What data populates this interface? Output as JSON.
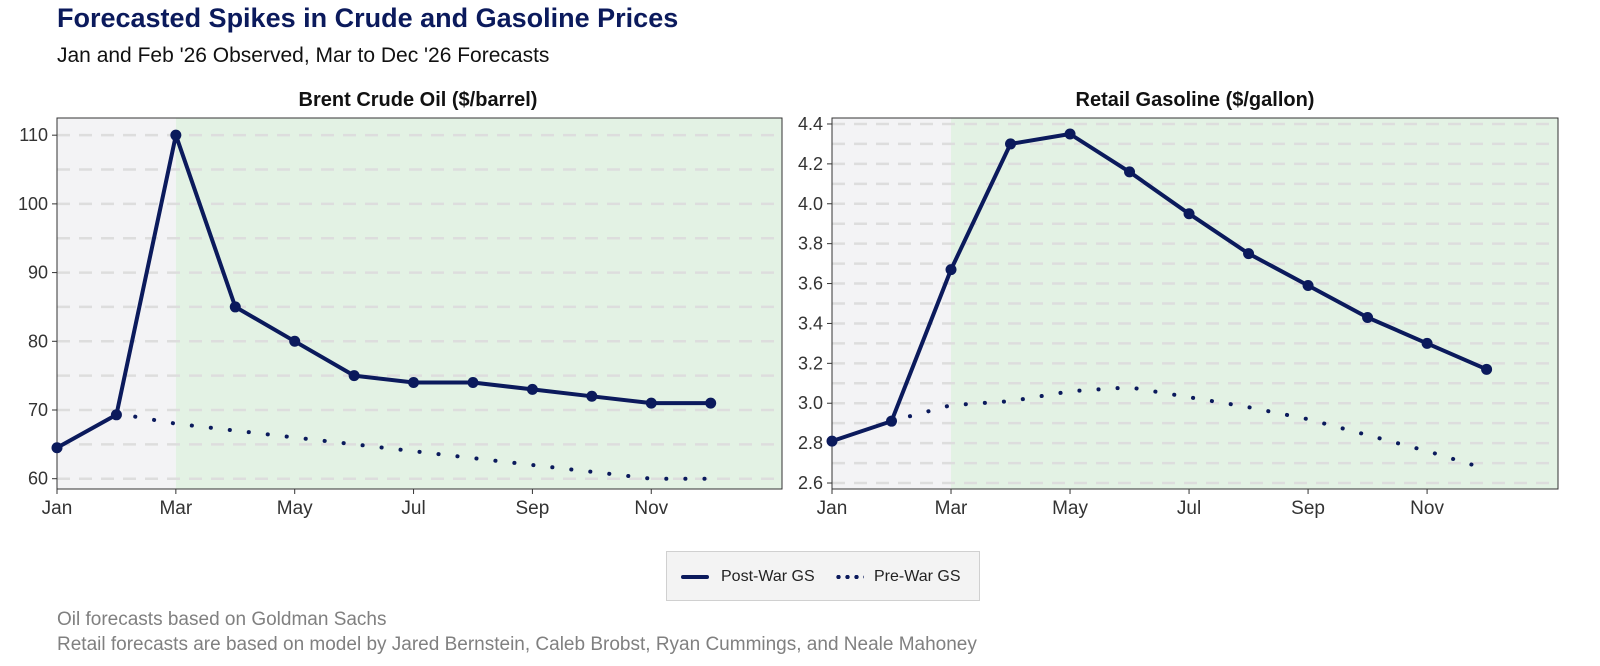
{
  "header": {
    "title": "Forecasted Spikes in Crude and Gasoline Prices",
    "subtitle": "Jan and Feb '26 Observed, Mar to Dec '26 Forecasts"
  },
  "colors": {
    "line": "#0b1a5c",
    "observed_bg": "#f3f3f5",
    "forecast_bg": "#e3f2e4",
    "grid": "#dddddd"
  },
  "legend": {
    "items": [
      {
        "label": "Post-War GS",
        "style": "solid"
      },
      {
        "label": "Pre-War GS",
        "style": "dotted"
      }
    ]
  },
  "captions": [
    "Oil forecasts based on Goldman Sachs",
    "Retail forecasts are based on model by Jared Bernstein, Caleb Brobst, Ryan Cummings, and Neale Mahoney"
  ],
  "chart_data": [
    {
      "type": "line",
      "title": "Brent Crude Oil ($/barrel)",
      "x": [
        1,
        2,
        3,
        4,
        5,
        6,
        7,
        8,
        9,
        10,
        11,
        12
      ],
      "x_tick_values": [
        1,
        3,
        5,
        7,
        9,
        11
      ],
      "x_tick_labels": [
        "Jan",
        "Mar",
        "May",
        "Jul",
        "Sep",
        "Nov"
      ],
      "xlim": [
        1,
        13.2
      ],
      "ylim": [
        58.5,
        112.5
      ],
      "y_ticks": [
        60,
        70,
        80,
        90,
        100,
        110
      ],
      "y_tick_labels": [
        "60",
        "70",
        "80",
        "90",
        "100",
        "110"
      ],
      "y_grid_minor": [
        65,
        75,
        85,
        95,
        105
      ],
      "observed_until": 3,
      "series": [
        {
          "name": "Post-War GS",
          "style": "solid",
          "x": [
            1,
            2,
            3,
            4,
            5,
            6,
            7,
            8,
            9,
            10,
            11,
            12
          ],
          "values": [
            64.5,
            69.3,
            110,
            85,
            80,
            75,
            74,
            74,
            73,
            72,
            71,
            71
          ]
        },
        {
          "name": "Pre-War GS",
          "style": "dotted",
          "x": [
            2,
            3,
            4,
            5,
            6,
            7,
            8,
            9,
            10,
            11,
            12
          ],
          "values": [
            69.5,
            68,
            67,
            66,
            65,
            64,
            63,
            62,
            61,
            60,
            60
          ]
        }
      ]
    },
    {
      "type": "line",
      "title": "Retail Gasoline ($/gallon)",
      "x": [
        1,
        2,
        3,
        4,
        5,
        6,
        7,
        8,
        9,
        10,
        11,
        12
      ],
      "x_tick_values": [
        1,
        3,
        5,
        7,
        9,
        11
      ],
      "x_tick_labels": [
        "Jan",
        "Mar",
        "May",
        "Jul",
        "Sep",
        "Nov"
      ],
      "xlim": [
        1,
        13.2
      ],
      "ylim": [
        2.57,
        4.43
      ],
      "y_ticks": [
        2.6,
        2.8,
        3.0,
        3.2,
        3.4,
        3.6,
        3.8,
        4.0,
        4.2,
        4.4
      ],
      "y_tick_labels": [
        "2.6",
        "2.8",
        "3.0",
        "3.2",
        "3.4",
        "3.6",
        "3.8",
        "4.0",
        "4.2",
        "4.4"
      ],
      "y_grid_minor": [
        2.7,
        2.9,
        3.1,
        3.3,
        3.5,
        3.7,
        3.9,
        4.1,
        4.3
      ],
      "observed_until": 3,
      "series": [
        {
          "name": "Post-War GS",
          "style": "solid",
          "x": [
            1,
            2,
            3,
            4,
            5,
            6,
            7,
            8,
            9,
            10,
            11,
            12
          ],
          "values": [
            2.81,
            2.91,
            3.67,
            4.3,
            4.35,
            4.16,
            3.95,
            3.75,
            3.59,
            3.43,
            3.3,
            3.17
          ]
        },
        {
          "name": "Pre-War GS",
          "style": "dotted",
          "x": [
            2,
            3,
            4,
            5,
            6,
            7,
            8,
            9,
            10,
            11,
            12
          ],
          "values": [
            2.91,
            2.99,
            3.01,
            3.06,
            3.08,
            3.03,
            2.98,
            2.92,
            2.84,
            2.76,
            2.67
          ]
        }
      ]
    }
  ]
}
